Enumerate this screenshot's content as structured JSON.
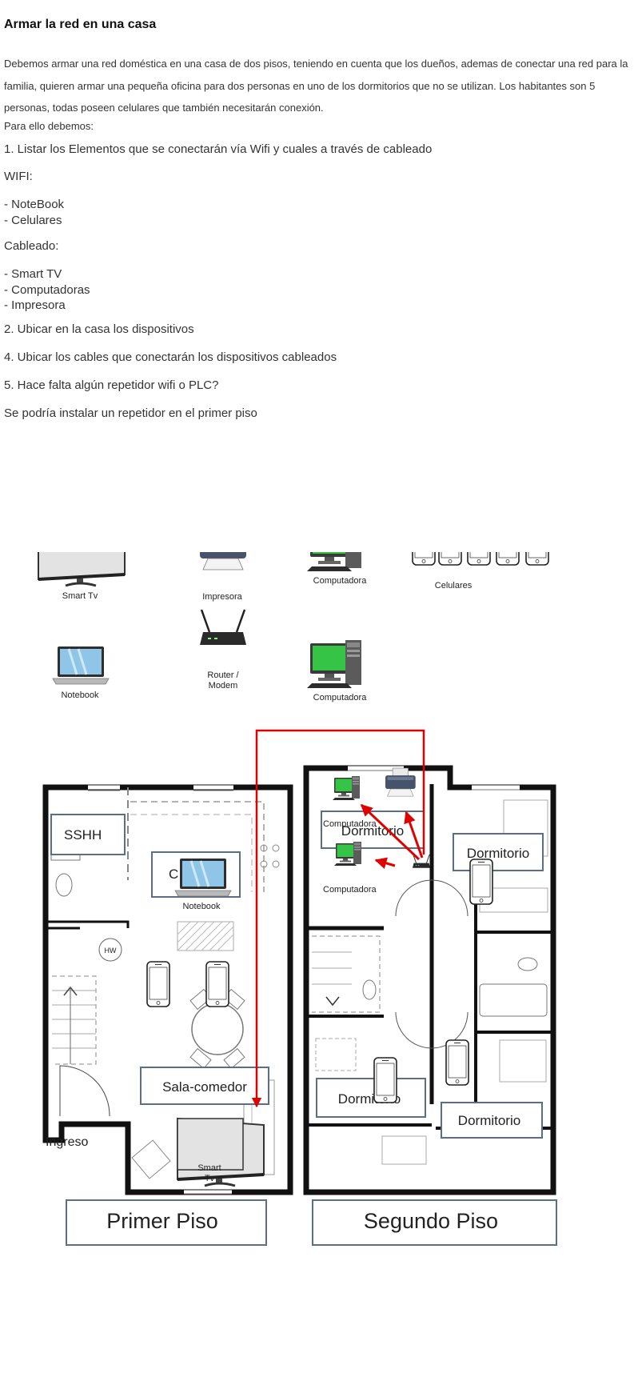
{
  "heading": "Armar la red en una casa",
  "intro": "Debemos armar una red doméstica en una casa de dos pisos, teniendo en cuenta que los dueños, ademas de conectar una red para la familia, quieren armar una pequeña oficina para dos personas en uno de los dormitorios que no se utilizan. Los habitantes son 5 personas, todas poseen celulares que también necesitarán conexión.",
  "para_ello": "Para ello debemos:",
  "q1": "1. Listar los Elementos que se conectarán vía Wifi y cuales a través de cableado",
  "wifi_label": "WIFI:",
  "wifi_items": [
    "- NoteBook",
    "- Celulares"
  ],
  "cable_label": "Cableado:",
  "cable_items": [
    "- Smart TV",
    "- Computadoras",
    "- Impresora"
  ],
  "q2": "2. Ubicar en la casa los dispositivos",
  "q4": "4. Ubicar los cables que conectarán los dispositivos cableados",
  "q5": "5. Hace falta algún repetidor wifi o PLC?",
  "answer": "Se podría instalar un repetidor en el primer piso",
  "legend": {
    "smart_tv": "Smart Tv",
    "impresora": "Impresora",
    "computadora_1": "Computadora",
    "celulares": "Celulares",
    "notebook": "Notebook",
    "router_line1": "Router /",
    "router_line2": "Modem",
    "computadora_2": "Computadora"
  },
  "floor1": {
    "title": "Primer Piso",
    "sshh": "SSHH",
    "cocina_partial": "C",
    "notebook": "Notebook",
    "hw": "HW",
    "sala": "Sala-comedor",
    "ingreso": "Ingreso",
    "smart_tv_line1": "Smart",
    "smart_tv_line2": "Tv"
  },
  "floor2": {
    "title": "Segundo Piso",
    "dormitorio_office": "Dormitorio",
    "dormitorio_right": "Dormitorio",
    "dormitorio_left": "Dormitorio",
    "dormitorio_bottom": "Dormitorio",
    "computadora_top": "Computadora",
    "computadora_bottom": "Computadora"
  },
  "colors": {
    "cable": "#e00000",
    "screen_green": "#35c445",
    "label_border": "#5a6e86",
    "wall": "#111111"
  }
}
